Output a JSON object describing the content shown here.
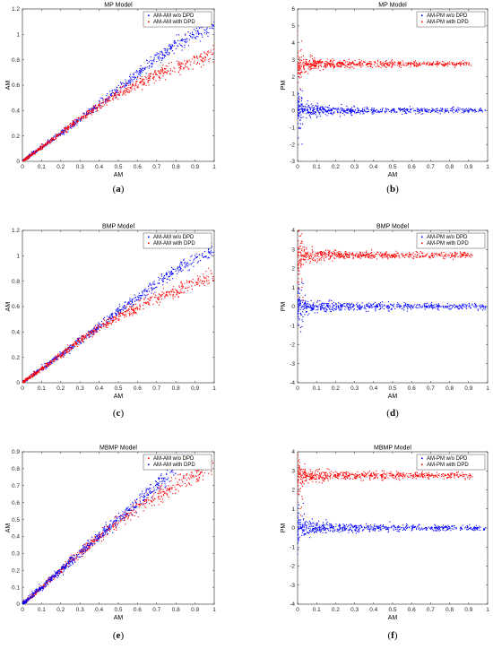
{
  "figure": {
    "panels": [
      {
        "caption": "(a)",
        "chart_data": {
          "type": "scatter",
          "title": "MP Model",
          "xlabel": "AM",
          "ylabel": "AM",
          "xlim": [
            0,
            1
          ],
          "ylim": [
            0,
            1.2
          ],
          "xticks": [
            0,
            0.1,
            0.2,
            0.3,
            0.4,
            0.5,
            0.6,
            0.7,
            0.8,
            0.9,
            1
          ],
          "yticks": [
            0,
            0.2,
            0.4,
            0.6,
            0.8,
            1,
            1.2
          ],
          "legend_position": "top-right",
          "series": [
            {
              "name": "AM-AM w/o DPD",
              "color": "#0000ff",
              "marker": "dot",
              "trend_points": [
                [
                  0,
                  0
                ],
                [
                  0.1,
                  0.11
                ],
                [
                  0.2,
                  0.22
                ],
                [
                  0.3,
                  0.33
                ],
                [
                  0.4,
                  0.45
                ],
                [
                  0.5,
                  0.57
                ],
                [
                  0.6,
                  0.69
                ],
                [
                  0.7,
                  0.81
                ],
                [
                  0.8,
                  0.92
                ],
                [
                  0.9,
                  1.0
                ],
                [
                  1.0,
                  1.08
                ]
              ]
            },
            {
              "name": "AM-AM with DPD",
              "color": "#ff0000",
              "marker": "dot",
              "trend_points": [
                [
                  0,
                  0
                ],
                [
                  0.1,
                  0.11
                ],
                [
                  0.2,
                  0.22
                ],
                [
                  0.3,
                  0.33
                ],
                [
                  0.4,
                  0.44
                ],
                [
                  0.5,
                  0.53
                ],
                [
                  0.6,
                  0.61
                ],
                [
                  0.7,
                  0.68
                ],
                [
                  0.8,
                  0.74
                ],
                [
                  0.9,
                  0.79
                ],
                [
                  1.0,
                  0.85
                ]
              ]
            }
          ]
        }
      },
      {
        "caption": "(b)",
        "chart_data": {
          "type": "scatter",
          "title": "MP Model",
          "xlabel": "AM",
          "ylabel": "PM",
          "xlim": [
            0,
            1
          ],
          "ylim": [
            -3,
            6
          ],
          "xticks": [
            0,
            0.1,
            0.2,
            0.3,
            0.4,
            0.5,
            0.6,
            0.7,
            0.8,
            0.9,
            1
          ],
          "yticks": [
            -3,
            -2,
            -1,
            0,
            1,
            2,
            3,
            4,
            5,
            6
          ],
          "legend_position": "top-right",
          "series": [
            {
              "name": "AM-PM w/o DPD",
              "color": "#0000ff",
              "marker": "dot",
              "center_value": 0,
              "x_extent": 0.99
            },
            {
              "name": "AM-PM with DPD",
              "color": "#ff0000",
              "marker": "dot",
              "center_value": 2.75,
              "x_extent": 0.92
            }
          ]
        }
      },
      {
        "caption": "(c)",
        "chart_data": {
          "type": "scatter",
          "title": "BMP Model",
          "xlabel": "AM",
          "ylabel": "AM",
          "xlim": [
            0,
            1
          ],
          "ylim": [
            0,
            1.2
          ],
          "xticks": [
            0,
            0.1,
            0.2,
            0.3,
            0.4,
            0.5,
            0.6,
            0.7,
            0.8,
            0.9,
            1
          ],
          "yticks": [
            0,
            0.2,
            0.4,
            0.6,
            0.8,
            1,
            1.2
          ],
          "legend_position": "top-right",
          "series": [
            {
              "name": "AM-AM w/o DPD",
              "color": "#0000ff",
              "marker": "dot",
              "trend_points": [
                [
                  0,
                  0
                ],
                [
                  0.1,
                  0.11
                ],
                [
                  0.2,
                  0.22
                ],
                [
                  0.3,
                  0.33
                ],
                [
                  0.4,
                  0.44
                ],
                [
                  0.5,
                  0.56
                ],
                [
                  0.6,
                  0.67
                ],
                [
                  0.7,
                  0.78
                ],
                [
                  0.8,
                  0.89
                ],
                [
                  0.9,
                  0.97
                ],
                [
                  1.0,
                  1.05
                ]
              ]
            },
            {
              "name": "AM-AM with DPD",
              "color": "#ff0000",
              "marker": "dot",
              "trend_points": [
                [
                  0,
                  0
                ],
                [
                  0.1,
                  0.11
                ],
                [
                  0.2,
                  0.22
                ],
                [
                  0.3,
                  0.33
                ],
                [
                  0.4,
                  0.43
                ],
                [
                  0.5,
                  0.52
                ],
                [
                  0.6,
                  0.6
                ],
                [
                  0.7,
                  0.67
                ],
                [
                  0.8,
                  0.73
                ],
                [
                  0.9,
                  0.79
                ],
                [
                  1.0,
                  0.85
                ]
              ]
            }
          ]
        }
      },
      {
        "caption": "(d)",
        "chart_data": {
          "type": "scatter",
          "title": "BMP Model",
          "xlabel": "AM",
          "ylabel": "PM",
          "xlim": [
            0,
            1
          ],
          "ylim": [
            -4,
            4
          ],
          "xticks": [
            0,
            0.1,
            0.2,
            0.3,
            0.4,
            0.5,
            0.6,
            0.7,
            0.8,
            0.9,
            1
          ],
          "yticks": [
            -4,
            -3,
            -2,
            -1,
            0,
            1,
            2,
            3,
            4
          ],
          "legend_position": "top-right",
          "series": [
            {
              "name": "AM-PM w/o DPD",
              "color": "#0000ff",
              "marker": "dot",
              "center_value": 0,
              "x_extent": 0.99
            },
            {
              "name": "AM-PM with DPD",
              "color": "#ff0000",
              "marker": "dot",
              "center_value": 2.7,
              "x_extent": 0.92
            }
          ]
        }
      },
      {
        "caption": "(e)",
        "chart_data": {
          "type": "scatter",
          "title": "MBMP Model",
          "xlabel": "AM",
          "ylabel": "AM",
          "xlim": [
            0,
            1
          ],
          "ylim": [
            0,
            0.9
          ],
          "xticks": [
            0,
            0.1,
            0.2,
            0.3,
            0.4,
            0.5,
            0.6,
            0.7,
            0.8,
            0.9,
            1
          ],
          "yticks": [
            0,
            0.1,
            0.2,
            0.3,
            0.4,
            0.5,
            0.6,
            0.7,
            0.8,
            0.9
          ],
          "legend_position": "top-right",
          "series": [
            {
              "name": "AM-AM w/o DPD",
              "color": "#ff0000",
              "marker": "dot",
              "trend_points": [
                [
                  0,
                  0
                ],
                [
                  0.1,
                  0.1
                ],
                [
                  0.2,
                  0.2
                ],
                [
                  0.3,
                  0.3
                ],
                [
                  0.4,
                  0.4
                ],
                [
                  0.5,
                  0.49
                ],
                [
                  0.6,
                  0.57
                ],
                [
                  0.7,
                  0.64
                ],
                [
                  0.8,
                  0.7
                ],
                [
                  0.9,
                  0.76
                ],
                [
                  1.0,
                  0.82
                ]
              ]
            },
            {
              "name": "AM-AM with DPD",
              "color": "#0000ff",
              "marker": "dot",
              "trend_points": [
                [
                  0,
                  0
                ],
                [
                  0.1,
                  0.1
                ],
                [
                  0.2,
                  0.2
                ],
                [
                  0.3,
                  0.3
                ],
                [
                  0.4,
                  0.4
                ],
                [
                  0.5,
                  0.5
                ],
                [
                  0.6,
                  0.6
                ],
                [
                  0.7,
                  0.7
                ],
                [
                  0.8,
                  0.8
                ],
                [
                  0.86,
                  0.86
                ]
              ]
            }
          ]
        }
      },
      {
        "caption": "(f)",
        "chart_data": {
          "type": "scatter",
          "title": "MBMP Model",
          "xlabel": "AM",
          "ylabel": "PM",
          "xlim": [
            0,
            1
          ],
          "ylim": [
            -4,
            4
          ],
          "xticks": [
            0,
            0.1,
            0.2,
            0.3,
            0.4,
            0.5,
            0.6,
            0.7,
            0.8,
            0.9,
            1
          ],
          "yticks": [
            -4,
            -3,
            -2,
            -1,
            0,
            1,
            2,
            3,
            4
          ],
          "legend_position": "top-right",
          "series": [
            {
              "name": "AM-PM w/o DPD",
              "color": "#0000ff",
              "marker": "dot",
              "center_value": 0,
              "x_extent": 0.99
            },
            {
              "name": "AM-PM with DPD",
              "color": "#ff0000",
              "marker": "dot",
              "center_value": 2.75,
              "x_extent": 0.92
            }
          ]
        }
      }
    ]
  }
}
